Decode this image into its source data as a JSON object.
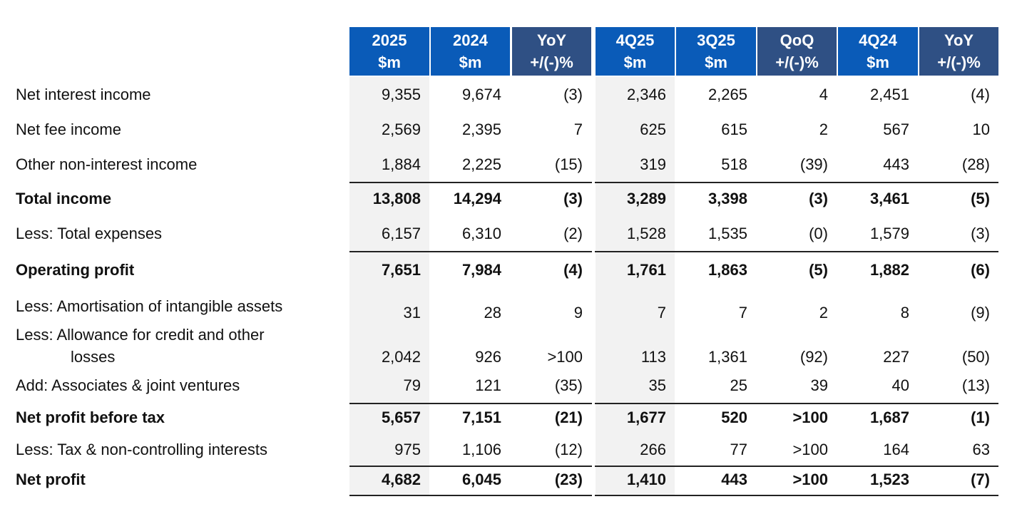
{
  "columns": [
    {
      "line1": "2025",
      "line2": "$m",
      "style": "year"
    },
    {
      "line1": "2024",
      "line2": "$m",
      "style": "year"
    },
    {
      "line1": "YoY",
      "line2": "+/(-)%",
      "style": "change"
    },
    {
      "line1": "4Q25",
      "line2": "$m",
      "style": "year"
    },
    {
      "line1": "3Q25",
      "line2": "$m",
      "style": "year"
    },
    {
      "line1": "QoQ",
      "line2": "+/(-)%",
      "style": "change"
    },
    {
      "line1": "4Q24",
      "line2": "$m",
      "style": "year"
    },
    {
      "line1": "YoY",
      "line2": "+/(-)%",
      "style": "change"
    }
  ],
  "colors": {
    "header": "#0a5bb8",
    "header_change": "#2f5084",
    "shade": "#f2f2f2"
  },
  "rows": [
    {
      "label": "Net interest income",
      "bold": false,
      "values": [
        "9,355",
        "9,674",
        "(3)",
        "2,346",
        "2,265",
        "4",
        "2,451",
        "(4)"
      ]
    },
    {
      "label": "Net fee income",
      "bold": false,
      "values": [
        "2,569",
        "2,395",
        "7",
        "625",
        "615",
        "2",
        "567",
        "10"
      ]
    },
    {
      "label": "Other non-interest income",
      "bold": false,
      "values": [
        "1,884",
        "2,225",
        "(15)",
        "319",
        "518",
        "(39)",
        "443",
        "(28)"
      ]
    },
    {
      "label": "Total income",
      "bold": true,
      "values": [
        "13,808",
        "14,294",
        "(3)",
        "3,289",
        "3,398",
        "(3)",
        "3,461",
        "(5)"
      ]
    },
    {
      "label": "Less: Total expenses",
      "bold": false,
      "values": [
        "6,157",
        "6,310",
        "(2)",
        "1,528",
        "1,535",
        "(0)",
        "1,579",
        "(3)"
      ]
    },
    {
      "label": "Operating profit",
      "bold": true,
      "values": [
        "7,651",
        "7,984",
        "(4)",
        "1,761",
        "1,863",
        "(5)",
        "1,882",
        "(6)"
      ]
    },
    {
      "label": "Less: Amortisation of intangible assets",
      "bold": false,
      "values": [
        "31",
        "28",
        "9",
        "7",
        "7",
        "2",
        "8",
        "(9)"
      ]
    },
    {
      "label": "Less: Allowance for credit and other",
      "label_cont": "losses",
      "bold": false,
      "values": [
        "2,042",
        "926",
        ">100",
        "113",
        "1,361",
        "(92)",
        "227",
        "(50)"
      ]
    },
    {
      "label": "Add: Associates & joint ventures",
      "bold": false,
      "values": [
        "79",
        "121",
        "(35)",
        "35",
        "25",
        "39",
        "40",
        "(13)"
      ]
    },
    {
      "label": "Net profit before tax",
      "bold": true,
      "values": [
        "5,657",
        "7,151",
        "(21)",
        "1,677",
        "520",
        ">100",
        "1,687",
        "(1)"
      ]
    },
    {
      "label": "Less: Tax & non-controlling interests",
      "bold": false,
      "values": [
        "975",
        "1,106",
        "(12)",
        "266",
        "77",
        ">100",
        "164",
        "63"
      ]
    },
    {
      "label": "Net profit",
      "bold": true,
      "values": [
        "4,682",
        "6,045",
        "(23)",
        "1,410",
        "443",
        ">100",
        "1,523",
        "(7)"
      ]
    }
  ]
}
